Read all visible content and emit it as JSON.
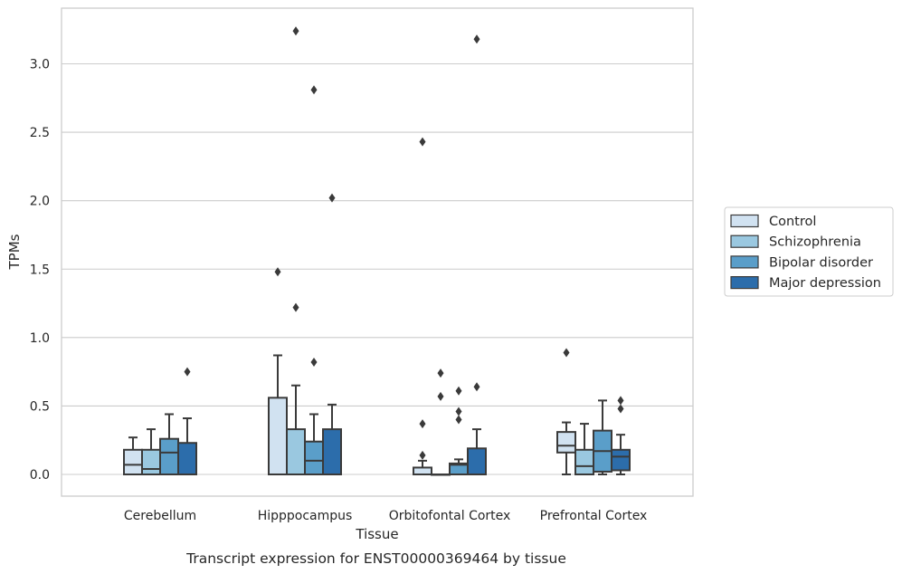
{
  "caption": "Transcript expression for ENST00000369464 by tissue",
  "chart_data": {
    "type": "box",
    "xlabel": "Tissue",
    "ylabel": "TPMs",
    "ylim": [
      -0.16,
      3.42
    ],
    "yticks": [
      0.0,
      0.5,
      1.0,
      1.5,
      2.0,
      2.5,
      3.0
    ],
    "ytick_labels": [
      "0.0",
      "0.5",
      "1.0",
      "1.5",
      "2.0",
      "2.5",
      "3.0"
    ],
    "grid": "horizontal",
    "legend_position": "right",
    "categories": [
      "Cerebellum",
      "Hipppocampus",
      "Orbitofontal Cortex",
      "Prefrontal Cortex"
    ],
    "series": [
      {
        "name": "Control",
        "color": "#d1e2f1",
        "boxes": [
          {
            "whisker_low": 0.0,
            "q1": 0.0,
            "median": 0.07,
            "q3": 0.18,
            "whisker_high": 0.27,
            "outliers": []
          },
          {
            "whisker_low": 0.0,
            "q1": 0.0,
            "median": 0.0,
            "q3": 0.56,
            "whisker_high": 0.87,
            "outliers": [
              1.48
            ]
          },
          {
            "whisker_low": 0.0,
            "q1": 0.0,
            "median": 0.0,
            "q3": 0.05,
            "whisker_high": 0.1,
            "outliers": [
              2.43,
              0.37,
              0.14
            ]
          },
          {
            "whisker_low": 0.0,
            "q1": 0.16,
            "median": 0.21,
            "q3": 0.31,
            "whisker_high": 0.38,
            "outliers": [
              0.89
            ]
          }
        ]
      },
      {
        "name": "Schizophrenia",
        "color": "#9ac8e0",
        "boxes": [
          {
            "whisker_low": 0.0,
            "q1": 0.0,
            "median": 0.04,
            "q3": 0.18,
            "whisker_high": 0.33,
            "outliers": []
          },
          {
            "whisker_low": 0.0,
            "q1": 0.0,
            "median": 0.0,
            "q3": 0.33,
            "whisker_high": 0.65,
            "outliers": [
              3.24,
              1.22
            ]
          },
          {
            "whisker_low": 0.0,
            "q1": 0.0,
            "median": 0.0,
            "q3": 0.0,
            "whisker_high": 0.0,
            "outliers": [
              0.74,
              0.57
            ]
          },
          {
            "whisker_low": 0.0,
            "q1": 0.0,
            "median": 0.06,
            "q3": 0.18,
            "whisker_high": 0.37,
            "outliers": []
          }
        ]
      },
      {
        "name": "Bipolar disorder",
        "color": "#5a9ec9",
        "boxes": [
          {
            "whisker_low": 0.0,
            "q1": 0.0,
            "median": 0.16,
            "q3": 0.26,
            "whisker_high": 0.44,
            "outliers": []
          },
          {
            "whisker_low": 0.0,
            "q1": 0.0,
            "median": 0.1,
            "q3": 0.24,
            "whisker_high": 0.44,
            "outliers": [
              2.81,
              0.82
            ]
          },
          {
            "whisker_low": 0.0,
            "q1": 0.0,
            "median": 0.07,
            "q3": 0.08,
            "whisker_high": 0.11,
            "outliers": [
              0.61,
              0.46,
              0.4
            ]
          },
          {
            "whisker_low": 0.0,
            "q1": 0.02,
            "median": 0.17,
            "q3": 0.32,
            "whisker_high": 0.54,
            "outliers": []
          }
        ]
      },
      {
        "name": "Major depression",
        "color": "#2c6dab",
        "boxes": [
          {
            "whisker_low": 0.0,
            "q1": 0.0,
            "median": 0.0,
            "q3": 0.23,
            "whisker_high": 0.41,
            "outliers": [
              0.75
            ]
          },
          {
            "whisker_low": 0.0,
            "q1": 0.0,
            "median": 0.0,
            "q3": 0.33,
            "whisker_high": 0.51,
            "outliers": [
              2.02
            ]
          },
          {
            "whisker_low": 0.0,
            "q1": 0.0,
            "median": 0.0,
            "q3": 0.19,
            "whisker_high": 0.33,
            "outliers": [
              3.18,
              0.64
            ]
          },
          {
            "whisker_low": 0.0,
            "q1": 0.03,
            "median": 0.13,
            "q3": 0.18,
            "whisker_high": 0.29,
            "outliers": [
              0.54,
              0.48
            ]
          }
        ]
      }
    ]
  }
}
